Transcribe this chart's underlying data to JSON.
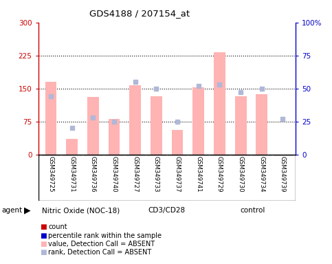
{
  "title": "GDS4188 / 207154_at",
  "samples": [
    "GSM349725",
    "GSM349731",
    "GSM349736",
    "GSM349740",
    "GSM349727",
    "GSM349733",
    "GSM349737",
    "GSM349741",
    "GSM349729",
    "GSM349730",
    "GSM349734",
    "GSM349739"
  ],
  "groups": [
    {
      "label": "Nitric Oxide (NOC-18)",
      "start": 0,
      "end": 4
    },
    {
      "label": "CD3/CD28",
      "start": 4,
      "end": 8
    },
    {
      "label": "control",
      "start": 8,
      "end": 12
    }
  ],
  "bar_values": [
    165,
    35,
    130,
    80,
    158,
    132,
    55,
    152,
    232,
    133,
    137,
    0
  ],
  "rank_values": [
    44,
    20,
    28,
    25,
    55,
    50,
    25,
    52,
    53,
    47,
    50,
    27
  ],
  "ylim_left": [
    0,
    300
  ],
  "ylim_right": [
    0,
    100
  ],
  "yticks_left": [
    0,
    75,
    150,
    225,
    300
  ],
  "yticks_right": [
    0,
    25,
    50,
    75,
    100
  ],
  "ytick_labels_left": [
    "0",
    "75",
    "150",
    "225",
    "300"
  ],
  "ytick_labels_right": [
    "0",
    "25",
    "50",
    "75",
    "100%"
  ],
  "bar_color_absent": "#ffb3b3",
  "rank_color_absent": "#b0b8d8",
  "dot_size": 22,
  "bar_width": 0.55,
  "background_xlabel": "#c8c8c8",
  "green_color": "#7fe87f",
  "legend_items": [
    "count",
    "percentile rank within the sample",
    "value, Detection Call = ABSENT",
    "rank, Detection Call = ABSENT"
  ],
  "legend_colors": [
    "#cc0000",
    "#0000cc",
    "#ffb3b3",
    "#b0b8d8"
  ]
}
